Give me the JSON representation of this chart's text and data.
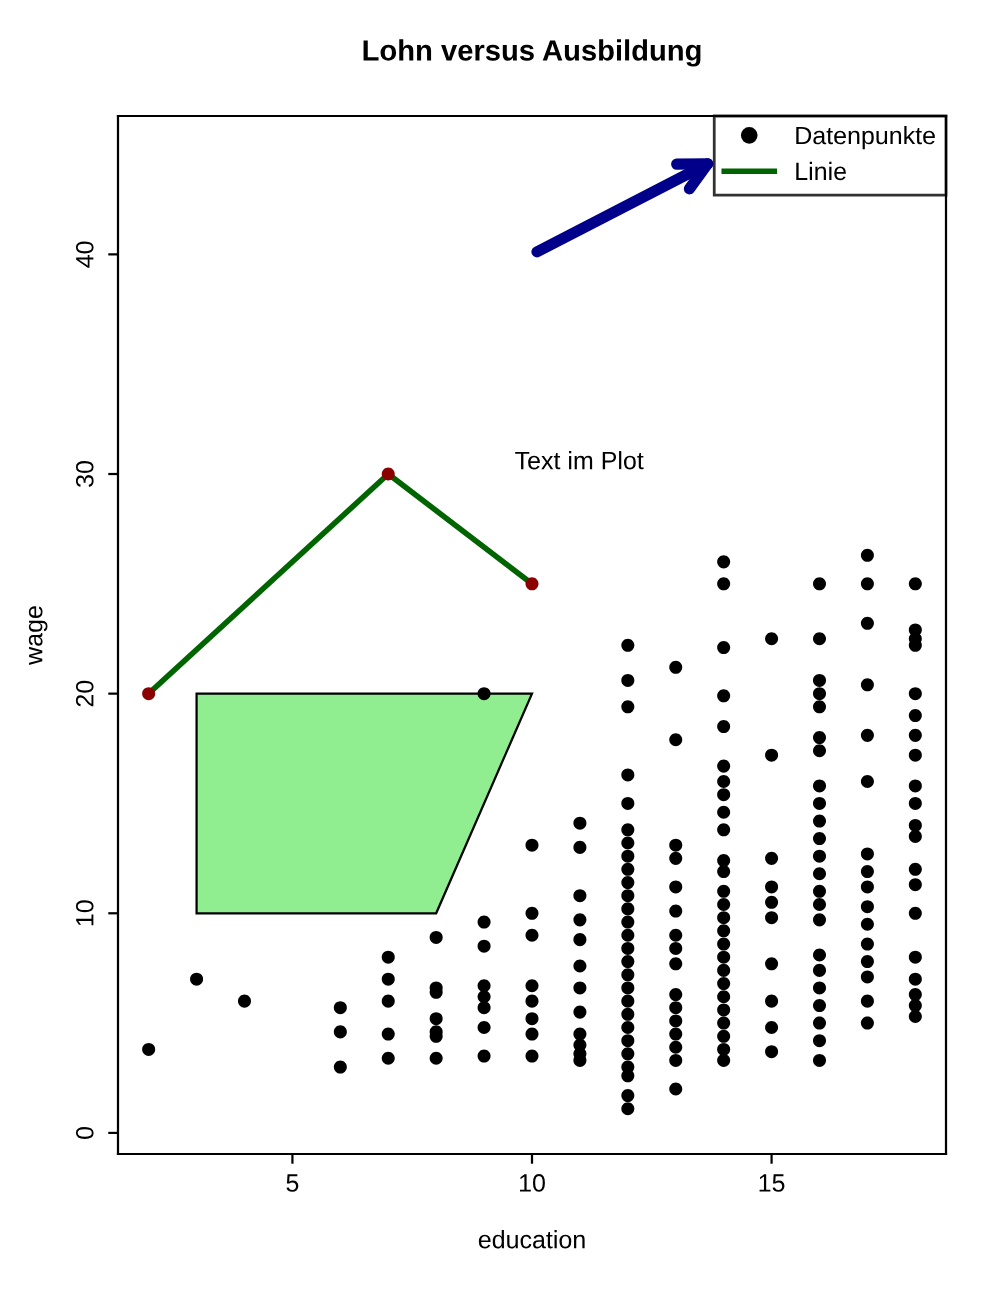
{
  "chart_data": {
    "type": "scatter",
    "title": "Lohn versus Ausbildung",
    "xlabel": "education",
    "ylabel": "wage",
    "xlim": [
      1.36,
      18.64
    ],
    "ylim": [
      -0.96,
      46.3
    ],
    "xticks": [
      5,
      10,
      15
    ],
    "yticks": [
      0,
      10,
      20,
      30,
      40
    ],
    "grid": false,
    "legend": "top right",
    "annotations": [
      "Text im Plot"
    ],
    "series": [
      {
        "name": "Datenpunkte",
        "marker": "circle",
        "color": "#000000",
        "x": [
          2,
          3,
          4,
          6,
          6,
          6,
          7,
          7,
          7,
          7,
          7,
          8,
          8,
          8,
          8,
          8,
          8,
          8,
          9,
          9,
          9,
          9,
          9,
          9,
          9,
          9,
          10,
          10,
          10,
          10,
          10,
          10,
          10,
          10,
          11,
          11,
          11,
          11,
          11,
          11,
          11,
          11,
          11,
          11,
          11,
          11,
          12,
          12,
          12,
          12,
          12,
          12,
          12,
          12,
          12,
          12,
          12,
          12,
          12,
          12,
          12,
          12,
          12,
          12,
          12,
          12,
          12,
          12,
          12,
          12,
          12,
          12,
          12,
          13,
          13,
          13,
          13,
          13,
          13,
          13,
          13,
          13,
          13,
          13,
          13,
          13,
          13,
          13,
          13,
          14,
          14,
          14,
          14,
          14,
          14,
          14,
          14,
          14,
          14,
          14,
          14,
          14,
          14,
          14,
          14,
          14,
          14,
          14,
          14,
          14,
          14,
          14,
          14,
          14,
          14,
          15,
          15,
          15,
          15,
          15,
          15,
          15,
          15,
          15,
          15,
          16,
          16,
          16,
          16,
          16,
          16,
          16,
          16,
          16,
          16,
          16,
          16,
          16,
          16,
          16,
          16,
          16,
          16,
          16,
          16,
          16,
          16,
          16,
          17,
          17,
          17,
          17,
          17,
          17,
          17,
          17,
          17,
          17,
          17,
          17,
          17,
          17,
          17,
          17,
          18,
          18,
          18,
          18,
          18,
          18,
          18,
          18,
          18,
          18,
          18,
          18,
          18,
          18,
          18,
          18,
          18,
          18,
          18,
          18
        ],
        "values": [
          3.8,
          7.0,
          6.0,
          5.7,
          4.6,
          3.0,
          8.0,
          7.0,
          6.0,
          4.5,
          3.4,
          8.9,
          6.6,
          6.4,
          5.2,
          4.6,
          4.4,
          3.4,
          20.0,
          9.6,
          8.5,
          6.7,
          6.2,
          5.7,
          4.8,
          3.5,
          13.1,
          10.0,
          9.0,
          6.7,
          6.0,
          5.2,
          4.5,
          3.5,
          14.1,
          13.0,
          10.8,
          9.7,
          8.8,
          7.6,
          6.6,
          5.5,
          4.5,
          4.0,
          3.6,
          3.3,
          22.2,
          20.6,
          19.4,
          16.3,
          15.0,
          13.8,
          13.2,
          12.6,
          12.0,
          11.4,
          10.8,
          10.2,
          9.6,
          9.0,
          8.4,
          7.8,
          7.2,
          6.6,
          6.0,
          5.4,
          4.8,
          4.2,
          3.6,
          3.0,
          2.6,
          1.7,
          1.1,
          21.2,
          17.9,
          13.1,
          12.5,
          11.2,
          10.1,
          9.0,
          8.4,
          7.7,
          6.3,
          5.7,
          5.1,
          4.5,
          3.9,
          3.3,
          2.0,
          26.0,
          25.0,
          22.1,
          19.9,
          18.5,
          16.7,
          16.0,
          15.4,
          14.6,
          13.8,
          12.4,
          11.9,
          11.0,
          10.4,
          9.8,
          9.2,
          8.6,
          8.0,
          7.4,
          6.8,
          6.2,
          5.6,
          5.0,
          4.4,
          3.8,
          3.3,
          22.5,
          17.2,
          12.5,
          11.2,
          10.5,
          9.8,
          7.7,
          6.0,
          4.8,
          3.7,
          25.0,
          22.5,
          20.6,
          20.0,
          19.4,
          18.0,
          17.4,
          15.8,
          15.0,
          14.2,
          13.4,
          12.6,
          11.8,
          11.0,
          10.4,
          9.7,
          8.1,
          7.4,
          6.6,
          5.8,
          5.0,
          4.2,
          3.3,
          26.3,
          25.0,
          23.2,
          20.4,
          18.1,
          16.0,
          12.7,
          11.9,
          11.2,
          10.3,
          9.5,
          8.6,
          7.8,
          7.1,
          6.0,
          5.0,
          25.0,
          22.9,
          22.5,
          22.2,
          20.0,
          19.0,
          18.1,
          17.2,
          15.8,
          15.0,
          14.0,
          13.5,
          12.0,
          11.3,
          10.0,
          8.0,
          7.0,
          6.3,
          5.8,
          5.3
        ]
      },
      {
        "name": "Linie",
        "type": "line",
        "color": "#006400",
        "x": [
          2,
          7,
          10
        ],
        "values": [
          20,
          30,
          25
        ]
      },
      {
        "type": "scatter",
        "marker": "circle",
        "color": "#8b0000",
        "x": [
          2,
          7,
          10
        ],
        "values": [
          20,
          30,
          25
        ]
      }
    ]
  }
}
